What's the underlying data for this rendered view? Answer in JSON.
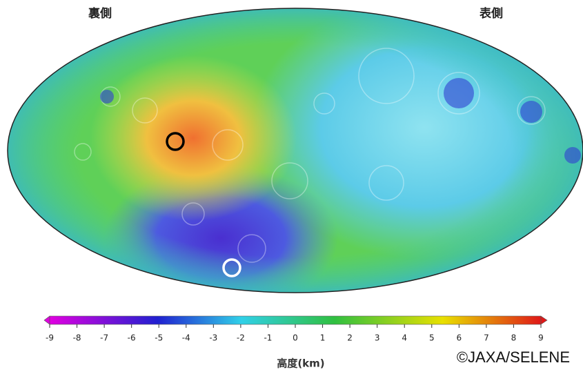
{
  "labels": {
    "far_side": "裏側",
    "near_side": "表側"
  },
  "colorbar": {
    "label": "高度(km)",
    "range": [
      -9,
      9
    ],
    "ticks": [
      -9,
      -8,
      -7,
      -6,
      -5,
      -4,
      -3,
      -2,
      -1,
      0,
      1,
      2,
      3,
      4,
      5,
      6,
      7,
      8,
      9
    ]
  },
  "credit": "©JAXA/SELENE"
}
